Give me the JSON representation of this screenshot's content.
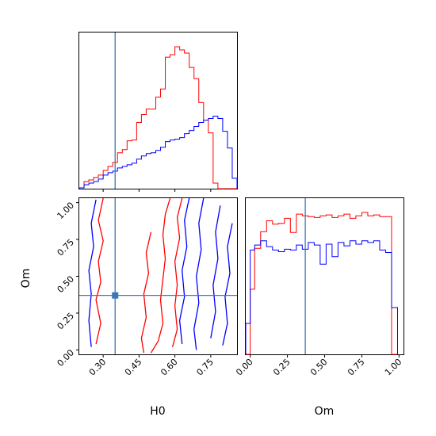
{
  "chart_data": [
    {
      "type": "histogram",
      "panel": "H0 marginal",
      "xlim": [
        0.2,
        0.86
      ],
      "truth": 0.35,
      "bins": [
        0.2,
        0.22,
        0.24,
        0.26,
        0.28,
        0.3,
        0.32,
        0.34,
        0.36,
        0.38,
        0.4,
        0.42,
        0.44,
        0.46,
        0.48,
        0.5,
        0.52,
        0.54,
        0.56,
        0.58,
        0.6,
        0.62,
        0.64,
        0.66,
        0.68,
        0.7,
        0.72,
        0.74,
        0.76,
        0.78,
        0.8,
        0.82,
        0.84,
        0.86
      ],
      "series": [
        {
          "color": "#ff0000",
          "values": [
            1,
            9,
            11,
            14,
            17,
            23,
            28,
            33,
            45,
            49,
            60,
            61,
            83,
            93,
            100,
            100,
            115,
            125,
            165,
            168,
            178,
            174,
            170,
            152,
            138,
            108,
            86,
            70,
            7,
            0,
            0,
            0,
            0
          ]
        },
        {
          "color": "#0000ff",
          "values": [
            1,
            5,
            7,
            9,
            12,
            17,
            20,
            22,
            26,
            28,
            30,
            32,
            37,
            41,
            44,
            45,
            48,
            52,
            59,
            61,
            62,
            64,
            69,
            73,
            78,
            83,
            86,
            88,
            91,
            88,
            72,
            51,
            13
          ]
        }
      ]
    },
    {
      "type": "histogram",
      "panel": "Om marginal",
      "xlim": [
        -0.03,
        1.03
      ],
      "truth": 0.37,
      "xlabel": "Om",
      "ticks": [
        "0.00",
        "0.25",
        "0.50",
        "0.75",
        "1.00"
      ],
      "bins": [
        -0.03,
        0.0,
        0.03,
        0.07,
        0.11,
        0.15,
        0.19,
        0.23,
        0.27,
        0.31,
        0.35,
        0.39,
        0.43,
        0.47,
        0.51,
        0.55,
        0.59,
        0.63,
        0.67,
        0.71,
        0.75,
        0.79,
        0.83,
        0.87,
        0.91,
        0.95,
        0.99,
        1.03
      ],
      "series": [
        {
          "color": "#ff0000",
          "values": [
            0,
            78,
            127,
            147,
            160,
            156,
            157,
            163,
            146,
            168,
            166,
            165,
            164,
            166,
            167,
            164,
            166,
            168,
            163,
            166,
            170,
            166,
            167,
            165,
            165,
            0
          ]
        },
        {
          "color": "#0000ff",
          "values": [
            37,
            125,
            131,
            136,
            129,
            125,
            123,
            126,
            125,
            131,
            126,
            134,
            131,
            108,
            132,
            117,
            134,
            130,
            136,
            132,
            136,
            134,
            136,
            125,
            122,
            56
          ]
        }
      ]
    },
    {
      "type": "contour",
      "panel": "H0 vs Om",
      "xlabel": "H0",
      "ylabel": "Om",
      "xlim": [
        0.2,
        0.86
      ],
      "ylim": [
        -0.03,
        1.03
      ],
      "truth": [
        0.35,
        0.37
      ],
      "xticks": [
        "0.30",
        "0.45",
        "0.60",
        "0.75"
      ],
      "yticks": [
        "0.00",
        "0.25",
        "0.50",
        "0.75",
        "1.00"
      ],
      "contours": [
        {
          "color": "#ff0000",
          "points": [
            [
              0.58,
              1.03
            ],
            [
              0.56,
              0.92
            ],
            [
              0.55,
              0.78
            ],
            [
              0.56,
              0.62
            ],
            [
              0.55,
              0.48
            ],
            [
              0.54,
              0.34
            ],
            [
              0.55,
              0.18
            ],
            [
              0.53,
              0.06
            ],
            [
              0.5,
              -0.02
            ]
          ]
        },
        {
          "color": "#ff0000",
          "points": [
            [
              0.63,
              1.03
            ],
            [
              0.61,
              0.9
            ],
            [
              0.62,
              0.76
            ],
            [
              0.6,
              0.6
            ],
            [
              0.61,
              0.44
            ],
            [
              0.6,
              0.3
            ],
            [
              0.61,
              0.14
            ],
            [
              0.59,
              0.02
            ]
          ]
        },
        {
          "color": "#ff0000",
          "points": [
            [
              0.5,
              0.8
            ],
            [
              0.48,
              0.66
            ],
            [
              0.49,
              0.52
            ],
            [
              0.47,
              0.38
            ],
            [
              0.48,
              0.22
            ],
            [
              0.46,
              0.08
            ],
            [
              0.47,
              -0.02
            ]
          ]
        },
        {
          "color": "#ff0000",
          "points": [
            [
              0.3,
              1.03
            ],
            [
              0.28,
              0.88
            ],
            [
              0.3,
              0.74
            ],
            [
              0.28,
              0.6
            ],
            [
              0.29,
              0.46
            ],
            [
              0.27,
              0.34
            ],
            [
              0.29,
              0.18
            ],
            [
              0.27,
              0.04
            ]
          ]
        },
        {
          "color": "#0000ff",
          "points": [
            [
              0.66,
              1.03
            ],
            [
              0.64,
              0.88
            ],
            [
              0.65,
              0.7
            ],
            [
              0.63,
              0.54
            ],
            [
              0.64,
              0.36
            ],
            [
              0.62,
              0.2
            ],
            [
              0.63,
              0.04
            ]
          ]
        },
        {
          "color": "#0000ff",
          "points": [
            [
              0.72,
              1.03
            ],
            [
              0.7,
              0.86
            ],
            [
              0.71,
              0.68
            ],
            [
              0.69,
              0.5
            ],
            [
              0.7,
              0.32
            ],
            [
              0.68,
              0.14
            ],
            [
              0.69,
              0.0
            ]
          ]
        },
        {
          "color": "#0000ff",
          "points": [
            [
              0.79,
              0.98
            ],
            [
              0.77,
              0.8
            ],
            [
              0.78,
              0.62
            ],
            [
              0.76,
              0.44
            ],
            [
              0.77,
              0.26
            ],
            [
              0.75,
              0.08
            ]
          ]
        },
        {
          "color": "#0000ff",
          "points": [
            [
              0.84,
              0.86
            ],
            [
              0.82,
              0.7
            ],
            [
              0.83,
              0.52
            ],
            [
              0.81,
              0.36
            ],
            [
              0.82,
              0.18
            ],
            [
              0.8,
              0.03
            ]
          ]
        },
        {
          "color": "#0000ff",
          "points": [
            [
              0.27,
              1.02
            ],
            [
              0.25,
              0.86
            ],
            [
              0.26,
              0.7
            ],
            [
              0.24,
              0.54
            ],
            [
              0.25,
              0.38
            ],
            [
              0.24,
              0.2
            ],
            [
              0.25,
              0.02
            ]
          ]
        }
      ]
    }
  ]
}
